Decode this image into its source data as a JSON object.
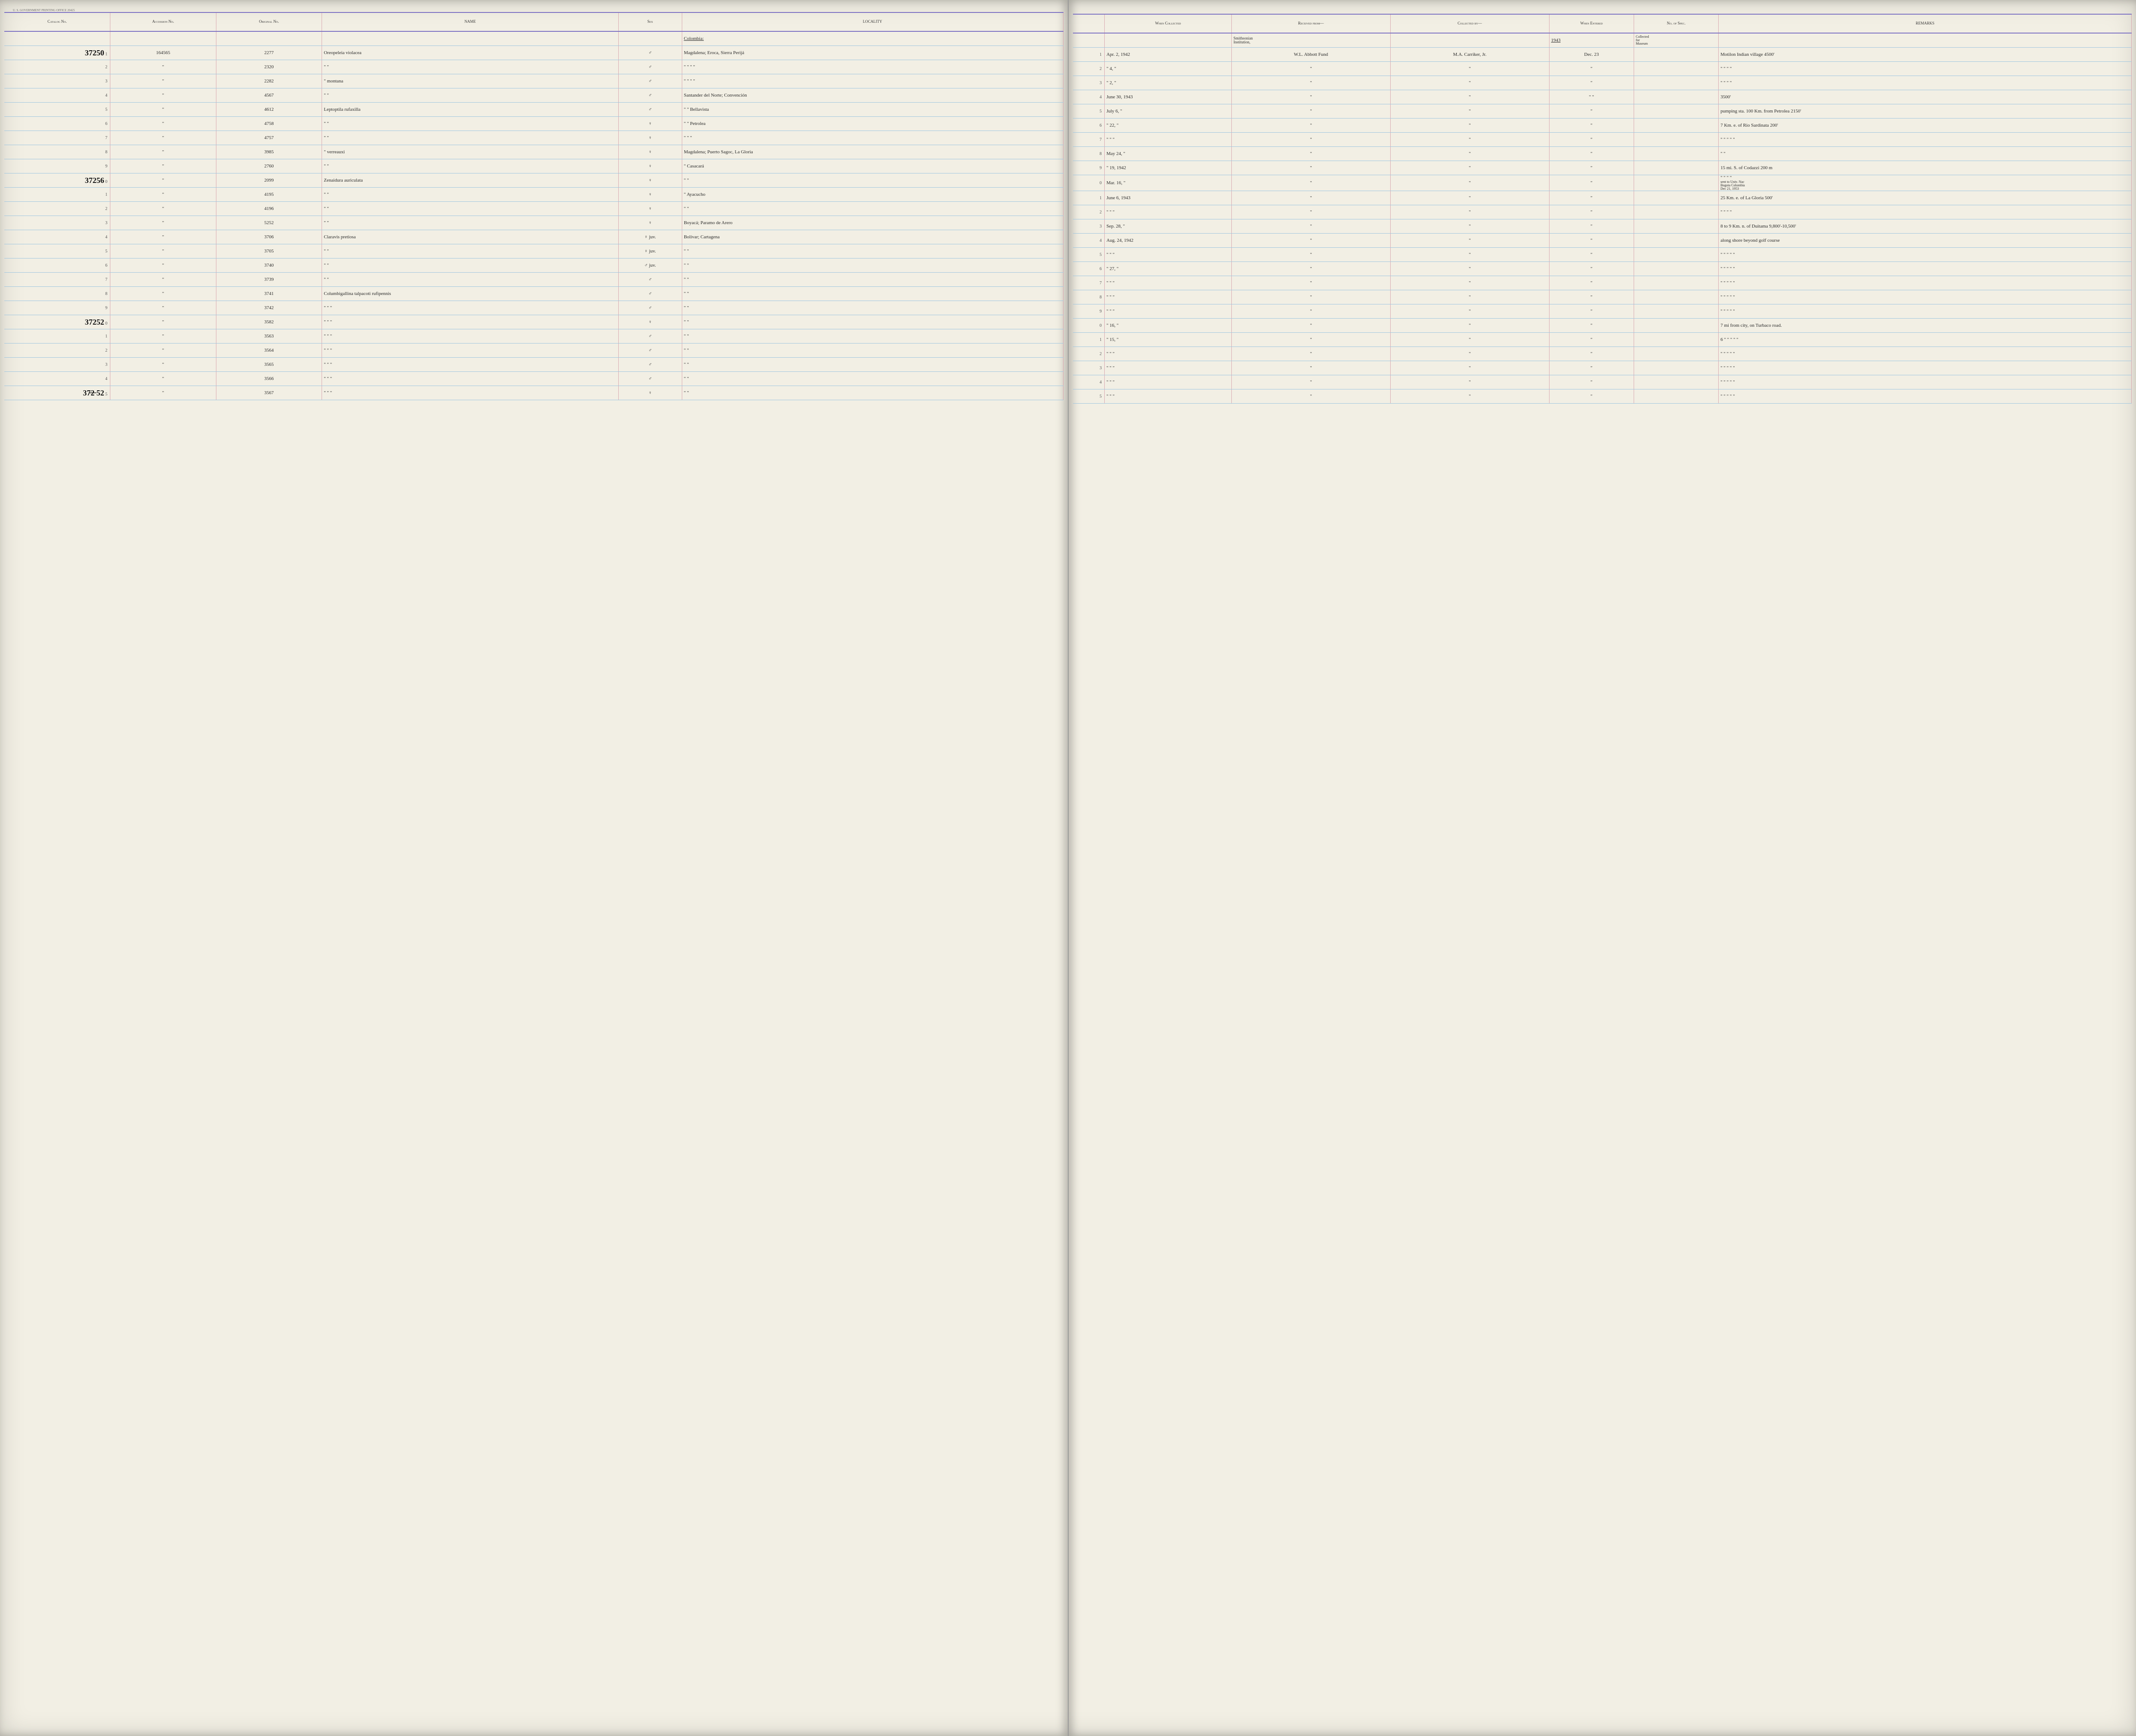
{
  "print_line": "U. S. GOVERNMENT PRINTING OFFICE    20425",
  "headers_left": {
    "catalog": "Catalog\nNo.",
    "accession": "Accession\nNo.",
    "original": "Original\nNo.",
    "name": "NAME",
    "sex": "Sex",
    "locality": "LOCALITY"
  },
  "headers_right": {
    "when_collected": "When\nCollected",
    "received_from": "Received from—",
    "collected_by": "Collected by—",
    "when_entered": "When\nEntered",
    "no_of_spec": "No.\nof\nSpec.",
    "remarks": "REMARKS"
  },
  "locality_header": "Colombia:",
  "received_from_note": "Smithsonian\nInstitution,",
  "when_entered_year": "1943",
  "no_spec_note": "Collected\nfor\nMuseum",
  "rows": [
    {
      "catalog_big": "37250",
      "row_num": "1",
      "accession": "164565",
      "original": "2277",
      "name": "Oreopeleia violacea",
      "sex": "♂",
      "locality": "Magdalena; Eroca, Sierra Perijá",
      "rnum": "1",
      "when_collected": "Apr. 2, 1942",
      "received_from": "W.L. Abbott Fund",
      "collected_by": "M.A. Carriker, Jr.",
      "when_entered": "Dec. 23",
      "remarks": "Motilon Indian village     4500'"
    },
    {
      "row_num": "2",
      "accession": "\"",
      "original": "2320",
      "name": "\"     \"",
      "sex": "♂",
      "locality": "\"     \"     \"     \"",
      "rnum": "2",
      "when_collected": "\"  4, \"",
      "received_from": "\"",
      "collected_by": "\"",
      "when_entered": "\"",
      "remarks": "\"     \"     \"     \""
    },
    {
      "row_num": "3",
      "accession": "\"",
      "original": "2282",
      "name": "\"   montana",
      "sex": "♂",
      "locality": "\"     \"     \"     \"",
      "rnum": "3",
      "when_collected": "\"  2, \"",
      "received_from": "\"",
      "collected_by": "\"",
      "when_entered": "\"",
      "remarks": "\"     \"     \"     \""
    },
    {
      "row_num": "4",
      "accession": "\"",
      "original": "4567",
      "name": "\"     \"",
      "sex": "♂",
      "locality": "Santander del Norte; Convención",
      "rnum": "4",
      "when_collected": "June 30, 1943",
      "received_from": "\"",
      "collected_by": "\"",
      "when_entered": "\"  \"",
      "remarks": "3500'"
    },
    {
      "row_num": "5",
      "accession": "\"",
      "original": "4612",
      "name": "Leptoptila rufaxilla",
      "sex": "♂",
      "locality": "\"   \"   Bellavista",
      "rnum": "5",
      "when_collected": "July 6, \"",
      "received_from": "\"",
      "collected_by": "\"",
      "when_entered": "\"",
      "remarks": "pumping sta. 100 Km. from Petrolea  2150'"
    },
    {
      "row_num": "6",
      "accession": "\"",
      "original": "4758",
      "name": "\"     \"",
      "sex": "♀",
      "locality": "\"   \"   Petrolea",
      "rnum": "6",
      "when_collected": "\"  22, \"",
      "received_from": "\"",
      "collected_by": "\"",
      "when_entered": "\"",
      "remarks": "7 Km. e. of Rio Sardinata    200'"
    },
    {
      "row_num": "7",
      "accession": "\"",
      "original": "4757",
      "name": "\"     \"",
      "sex": "♀",
      "locality": "\"   \"   \"",
      "rnum": "7",
      "when_collected": "\"  \"  \"",
      "received_from": "\"",
      "collected_by": "\"",
      "when_entered": "\"",
      "remarks": "\"   \"   \"   \"     \""
    },
    {
      "row_num": "8",
      "accession": "\"",
      "original": "3985",
      "name": "\"   verreauxi",
      "sex": "♀",
      "locality": "Magdalena; Puerto Sagoc, La Gloria",
      "rnum": "8",
      "when_collected": "May 24, \"",
      "received_from": "\"",
      "collected_by": "\"",
      "when_entered": "\"",
      "remarks": "\"   \""
    },
    {
      "row_num": "9",
      "accession": "\"",
      "original": "2760",
      "name": "\"     \"",
      "sex": "♀",
      "locality": "\"   Casacará",
      "rnum": "9",
      "when_collected": "\"  19, 1942",
      "received_from": "\"",
      "collected_by": "\"",
      "when_entered": "\"",
      "remarks": "15 mi. S. of Codazzi    200 m"
    },
    {
      "catalog_big": "37256",
      "row_num": "0",
      "accession": "\"",
      "original": "2099",
      "name": "Zenaidura auriculata",
      "sex": "♀",
      "locality": "\"     \"",
      "rnum": "0",
      "when_collected": "Mar. 16, \"",
      "received_from": "\"",
      "collected_by": "\"",
      "when_entered": "\"",
      "remarks": "\"   \"   \"     \"",
      "annotation": "sent to Univ. Nac\nBogota Colombia\nDec 21, 1953"
    },
    {
      "row_num": "1",
      "accession": "\"",
      "original": "4195",
      "name": "\"     \"",
      "sex": "♀",
      "locality": "\"   Ayacucho",
      "rnum": "1",
      "when_collected": "June 6, 1943",
      "received_from": "\"",
      "collected_by": "\"",
      "when_entered": "\"",
      "remarks": "25 Km. e. of La Gloria   500'"
    },
    {
      "row_num": "2",
      "accession": "\"",
      "original": "4196",
      "name": "\"     \"",
      "sex": "♀",
      "locality": "\"     \"",
      "rnum": "2",
      "when_collected": "\"  \"  \"",
      "received_from": "\"",
      "collected_by": "\"",
      "when_entered": "\"",
      "remarks": "\"   \"   \"     \""
    },
    {
      "row_num": "3",
      "accession": "\"",
      "original": "5252",
      "name": "\"     \"",
      "sex": "♀",
      "locality": "Boyacá; Paramo de Arero",
      "rnum": "3",
      "when_collected": "Sep. 28, \"",
      "received_from": "\"",
      "collected_by": "\"",
      "when_entered": "\"",
      "remarks": "8 to 9 Km. n. of Duitama  9,800'-10,500'"
    },
    {
      "row_num": "4",
      "accession": "\"",
      "original": "3706",
      "name": "Claravis pretiosa",
      "sex": "♀ juv.",
      "locality": "Bolívar; Cartagena",
      "rnum": "4",
      "when_collected": "Aug. 24, 1942",
      "received_from": "\"",
      "collected_by": "\"",
      "when_entered": "\"",
      "remarks": "along shore beyond golf course"
    },
    {
      "row_num": "5",
      "accession": "\"",
      "original": "3705",
      "name": "\"     \"",
      "sex": "♀ juv.",
      "locality": "\"     \"",
      "rnum": "5",
      "when_collected": "\"  \"  \"",
      "received_from": "\"",
      "collected_by": "\"",
      "when_entered": "\"",
      "remarks": "\"   \"   \"   \"     \""
    },
    {
      "row_num": "6",
      "accession": "\"",
      "original": "3740",
      "name": "\"     \"",
      "sex": "♂ juv.",
      "locality": "\"     \"",
      "rnum": "6",
      "when_collected": "\"  27, \"",
      "received_from": "\"",
      "collected_by": "\"",
      "when_entered": "\"",
      "remarks": "\"   \"   \"   \"     \""
    },
    {
      "row_num": "7",
      "accession": "\"",
      "original": "3739",
      "name": "\"     \"",
      "sex": "♂",
      "locality": "\"     \"",
      "rnum": "7",
      "when_collected": "\"  \"  \"",
      "received_from": "\"",
      "collected_by": "\"",
      "when_entered": "\"",
      "remarks": "\"   \"   \"   \"     \""
    },
    {
      "row_num": "8",
      "accession": "\"",
      "original": "3741",
      "name": "Columbigallina talpacoti rufipennis",
      "sex": "♂",
      "locality": "\"     \"",
      "rnum": "8",
      "when_collected": "\"  \"  \"",
      "received_from": "\"",
      "collected_by": "\"",
      "when_entered": "\"",
      "remarks": "\"   \"   \"   \"     \""
    },
    {
      "row_num": "9",
      "accession": "\"",
      "original": "3742",
      "name": "\"   \"   \"",
      "sex": "♂",
      "locality": "\"     \"",
      "rnum": "9",
      "when_collected": "\"  \"  \"",
      "received_from": "\"",
      "collected_by": "\"",
      "when_entered": "\"",
      "remarks": "\"   \"   \"   \"     \""
    },
    {
      "catalog_big": "37252",
      "row_num": "0",
      "accession": "\"",
      "original": "3582",
      "name": "\"   \"   \"",
      "sex": "♀",
      "locality": "\"     \"",
      "rnum": "0",
      "when_collected": "\"  16, \"",
      "received_from": "\"",
      "collected_by": "\"",
      "when_entered": "\"",
      "remarks": "7 mi from city, on Turbaco road."
    },
    {
      "row_num": "1",
      "accession": "\"",
      "original": "3563",
      "name": "\"   \"   \"",
      "sex": "♂",
      "locality": "\"     \"",
      "rnum": "1",
      "when_collected": "\"  15, \"",
      "received_from": "\"",
      "collected_by": "\"",
      "when_entered": "\"",
      "remarks": "6 \"   \"   \"   \"   \""
    },
    {
      "row_num": "2",
      "accession": "\"",
      "original": "3564",
      "name": "\"   \"   \"",
      "sex": "♂",
      "locality": "\"     \"",
      "rnum": "2",
      "when_collected": "\"  \"  \"",
      "received_from": "\"",
      "collected_by": "\"",
      "when_entered": "\"",
      "remarks": "\"   \"   \"   \"   \""
    },
    {
      "row_num": "3",
      "accession": "\"",
      "original": "3565",
      "name": "\"   \"   \"",
      "sex": "♂",
      "locality": "\"     \"",
      "rnum": "3",
      "when_collected": "\"  \"  \"",
      "received_from": "\"",
      "collected_by": "\"",
      "when_entered": "\"",
      "remarks": "\"   \"   \"   \"   \""
    },
    {
      "row_num": "4",
      "accession": "\"",
      "original": "3566",
      "name": "\"   \"   \"",
      "sex": "♂",
      "locality": "\"     \"",
      "rnum": "4",
      "when_collected": "\"  \"  \"",
      "received_from": "\"",
      "collected_by": "\"",
      "when_entered": "\"",
      "remarks": "\"   \"   \"   \"   \""
    },
    {
      "catalog_big": "37̶2̶ 52",
      "row_num": "5",
      "accession": "\"",
      "original": "3567",
      "name": "\"   \"   \"",
      "sex": "♀",
      "locality": "\"     \"",
      "rnum": "5",
      "when_collected": "\"  \"  \"",
      "received_from": "\"",
      "collected_by": "\"",
      "when_entered": "\"",
      "remarks": "\"   \"   \"   \"   \""
    }
  ],
  "colors": {
    "paper": "#f2efe4",
    "rule_blue": "#9fc6e0",
    "rule_pink": "#d9a8b0",
    "rule_purple": "#7a6fc2",
    "ink": "#2a2a2a"
  },
  "col_widths_left": {
    "catalog": "10%",
    "accession": "10%",
    "original": "10%",
    "name": "28%",
    "sex": "6%",
    "locality": "36%"
  },
  "col_widths_right": {
    "rnum": "3%",
    "when_collected": "12%",
    "received_from": "15%",
    "collected_by": "15%",
    "when_entered": "8%",
    "no_spec": "8%",
    "remarks": "39%"
  }
}
